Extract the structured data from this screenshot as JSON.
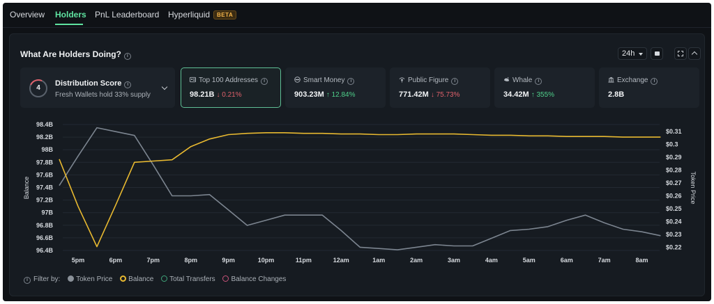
{
  "tabs": [
    {
      "label": "Overview"
    },
    {
      "label": "Holders"
    },
    {
      "label": "PnL Leaderboard"
    },
    {
      "label": "Hyperliquid",
      "badge": "BETA"
    }
  ],
  "active_tab": "Holders",
  "panel": {
    "title": "What Are Holders Doing?",
    "time_range": "24h"
  },
  "distribution": {
    "score": "4",
    "title": "Distribution Score",
    "subtitle": "Fresh Wallets hold 33% supply"
  },
  "cards": [
    {
      "label": "Top 100 Addresses",
      "icon": "address-book-icon",
      "value": "98.21B",
      "change": "0.21%",
      "direction": "down",
      "selected": true
    },
    {
      "label": "Smart Money",
      "icon": "smart-money-icon",
      "value": "903.23M",
      "change": "12.84%",
      "direction": "up",
      "selected": false
    },
    {
      "label": "Public Figure",
      "icon": "public-figure-icon",
      "value": "771.42M",
      "change": "75.73%",
      "direction": "down",
      "selected": false
    },
    {
      "label": "Whale",
      "icon": "whale-icon",
      "value": "34.42M",
      "change": "355%",
      "direction": "up",
      "selected": false
    },
    {
      "label": "Exchange",
      "icon": "bank-icon",
      "value": "2.8B",
      "change": "",
      "direction": "",
      "selected": false
    }
  ],
  "chart_data": {
    "type": "line",
    "x_categories": [
      "5pm",
      "6pm",
      "7pm",
      "8pm",
      "9pm",
      "10pm",
      "11pm",
      "12am",
      "1am",
      "2am",
      "3am",
      "4am",
      "5am",
      "6am",
      "7am",
      "8am"
    ],
    "y_left": {
      "label": "Balance",
      "ticks": [
        "98.4B",
        "98.2B",
        "98B",
        "97.8B",
        "97.6B",
        "97.4B",
        "97.2B",
        "97B",
        "96.8B",
        "96.6B",
        "96.4B"
      ],
      "range": [
        96.4,
        98.4
      ]
    },
    "y_right": {
      "label": "Token Price",
      "ticks": [
        "$0.31",
        "$0.3",
        "$0.29",
        "$0.28",
        "$0.27",
        "$0.26",
        "$0.25",
        "$0.24",
        "$0.23",
        "$0.22"
      ],
      "range": [
        0.2175,
        0.3155
      ]
    },
    "x_points": [
      -0.5,
      0,
      0.5,
      1,
      1.5,
      2,
      2.5,
      3,
      3.5,
      4,
      4.5,
      5,
      5.5,
      6,
      6.5,
      7,
      7.5,
      8,
      8.5,
      9,
      9.5,
      10,
      10.5,
      11,
      11.5,
      12,
      12.5,
      13,
      13.5,
      14,
      14.5,
      15,
      15.5
    ],
    "series": [
      {
        "name": "Balance",
        "axis": "left",
        "color": "#e8b930",
        "values": [
          97.85,
          97.1,
          96.46,
          97.12,
          97.8,
          97.82,
          97.84,
          98.05,
          98.17,
          98.24,
          98.26,
          98.27,
          98.27,
          98.26,
          98.26,
          98.25,
          98.25,
          98.24,
          98.24,
          98.25,
          98.25,
          98.25,
          98.24,
          98.23,
          98.23,
          98.22,
          98.22,
          98.21,
          98.21,
          98.21,
          98.2,
          98.2,
          98.2
        ]
      },
      {
        "name": "Token Price",
        "axis": "right",
        "color": "#7c8590",
        "values": [
          0.268,
          0.291,
          0.313,
          0.31,
          0.307,
          0.284,
          0.26,
          0.26,
          0.261,
          0.249,
          0.237,
          0.241,
          0.245,
          0.245,
          0.245,
          0.233,
          0.22,
          0.219,
          0.218,
          0.22,
          0.222,
          0.221,
          0.221,
          0.227,
          0.233,
          0.234,
          0.236,
          0.241,
          0.245,
          0.239,
          0.234,
          0.232,
          0.229
        ]
      }
    ],
    "grid": true,
    "legend_position": "bottom-left"
  },
  "legend": {
    "prefix": "Filter by:",
    "items": [
      {
        "label": "Token Price",
        "color": "#8a9199",
        "active": true
      },
      {
        "label": "Balance",
        "color": "#e8b930",
        "active": true
      },
      {
        "label": "Total Transfers",
        "color": "#3fa57a",
        "active": false
      },
      {
        "label": "Balance Changes",
        "color": "#c9527a",
        "active": false
      }
    ]
  }
}
